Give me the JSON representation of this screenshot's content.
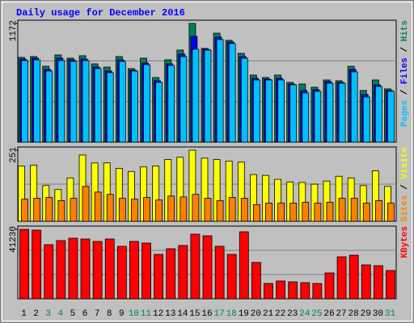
{
  "chart_data": [
    {
      "type": "bar",
      "title": "Daily usage for December 2016",
      "categories": [
        "1",
        "2",
        "3",
        "4",
        "5",
        "6",
        "7",
        "8",
        "9",
        "10",
        "11",
        "12",
        "13",
        "14",
        "15",
        "16",
        "17",
        "18",
        "19",
        "20",
        "21",
        "22",
        "23",
        "24",
        "25",
        "26",
        "27",
        "28",
        "29",
        "30",
        "31"
      ],
      "category_colors": [
        "#000000",
        "#000000",
        "#00805c",
        "#00805c",
        "#000000",
        "#000000",
        "#000000",
        "#000000",
        "#000000",
        "#00805c",
        "#00805c",
        "#000000",
        "#000000",
        "#000000",
        "#000000",
        "#000000",
        "#00805c",
        "#00805c",
        "#000000",
        "#000000",
        "#000000",
        "#000000",
        "#000000",
        "#00805c",
        "#00805c",
        "#000000",
        "#000000",
        "#000000",
        "#000000",
        "#000000",
        "#00805c"
      ],
      "legend_separator": " / ",
      "ylim": [
        0,
        1172
      ],
      "yticks": [
        1172
      ],
      "series": [
        {
          "name": "Hits",
          "color": "#00805c",
          "values": [
            837,
            845,
            749,
            861,
            829,
            853,
            773,
            741,
            845,
            726,
            829,
            638,
            813,
            909,
            1172,
            925,
            1076,
            1005,
            877,
            662,
            638,
            662,
            590,
            574,
            542,
            614,
            606,
            749,
            510,
            614,
            526
          ]
        },
        {
          "name": "Files",
          "color": "#0000ff",
          "values": [
            820,
            829,
            718,
            829,
            813,
            821,
            742,
            702,
            813,
            710,
            781,
            606,
            773,
            869,
            1045,
            917,
            1037,
            989,
            845,
            630,
            622,
            630,
            574,
            510,
            518,
            598,
            590,
            718,
            470,
            566,
            510
          ]
        },
        {
          "name": "Pages",
          "color": "#00c0ff",
          "values": [
            805,
            813,
            702,
            805,
            797,
            805,
            726,
            686,
            797,
            702,
            765,
            590,
            757,
            845,
            917,
            909,
            1013,
            973,
            829,
            614,
            614,
            614,
            566,
            486,
            502,
            582,
            582,
            694,
            446,
            550,
            502
          ]
        }
      ]
    },
    {
      "type": "bar",
      "ylim": [
        0,
        251
      ],
      "yticks": [
        251
      ],
      "series": [
        {
          "name": "Visits",
          "color": "#ffff00",
          "values": [
            195,
            198,
            126,
            112,
            153,
            234,
            206,
            206,
            187,
            176,
            192,
            195,
            218,
            226,
            251,
            223,
            218,
            212,
            209,
            165,
            162,
            148,
            139,
            137,
            131,
            142,
            159,
            153,
            126,
            178,
            123
          ]
        },
        {
          "name": "Sites",
          "color": "#ff8000",
          "values": [
            78,
            81,
            84,
            73,
            81,
            123,
            103,
            95,
            81,
            78,
            84,
            75,
            89,
            86,
            95,
            81,
            73,
            84,
            81,
            59,
            64,
            64,
            64,
            67,
            64,
            67,
            81,
            81,
            64,
            73,
            64
          ]
        }
      ]
    },
    {
      "type": "bar",
      "ylim": [
        0,
        41230
      ],
      "yticks": [
        41230
      ],
      "series": [
        {
          "name": "KBytes",
          "color": "#ff0000",
          "values": [
            41230,
            40750,
            32120,
            34520,
            35960,
            35480,
            34040,
            35480,
            31160,
            34040,
            33080,
            26370,
            29720,
            31640,
            38350,
            37390,
            31160,
            26370,
            39790,
            21570,
            9110,
            10550,
            10070,
            9590,
            9110,
            15340,
            24930,
            25890,
            20130,
            19660,
            16780
          ]
        }
      ]
    }
  ]
}
